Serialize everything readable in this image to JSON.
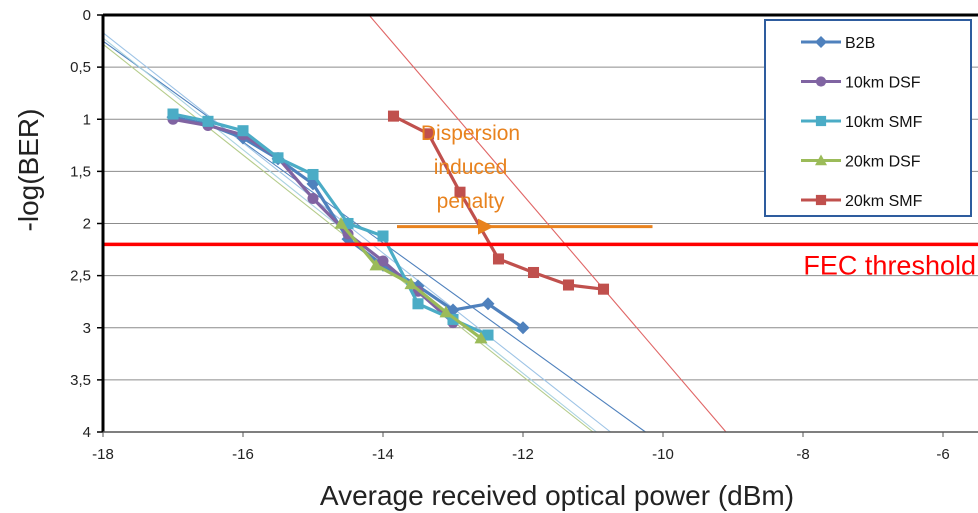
{
  "chart_data": {
    "type": "scatter",
    "xlabel": "Average received optical power (dBm)",
    "ylabel": "-log(BER)",
    "xlim": [
      -18,
      -5.5
    ],
    "ylim": [
      0,
      4
    ],
    "y_inverted": true,
    "x_ticks": [
      "-18",
      "-16",
      "-14",
      "-12",
      "-10",
      "-8",
      "-6"
    ],
    "x_tick_values": [
      -18,
      -16,
      -14,
      -12,
      -10,
      -8,
      -6
    ],
    "y_ticks": [
      "0",
      "0,5",
      "1",
      "1,5",
      "2",
      "2,5",
      "3",
      "3,5",
      "4"
    ],
    "y_tick_values": [
      0,
      0.5,
      1,
      1.5,
      2,
      2.5,
      3,
      3.5,
      4
    ],
    "grid": "horizontal",
    "legend_position": "top-right",
    "series": [
      {
        "name": "B2B",
        "color": "#4F81BD",
        "marker": "diamond",
        "x": [
          -17,
          -16.5,
          -16,
          -15.5,
          -15,
          -14.5,
          -14,
          -13.5,
          -13,
          -12.5,
          -12
        ],
        "y": [
          0.98,
          1.05,
          1.18,
          1.38,
          1.62,
          2.15,
          2.4,
          2.6,
          2.83,
          2.77,
          3.0
        ]
      },
      {
        "name": "10km DSF",
        "color": "#8064A2",
        "marker": "circle",
        "x": [
          -17,
          -16.5,
          -16,
          -15.5,
          -15,
          -14.5,
          -14,
          -13.5,
          -13
        ],
        "y": [
          1.0,
          1.06,
          1.15,
          1.37,
          1.76,
          2.1,
          2.36,
          2.65,
          2.95
        ]
      },
      {
        "name": "10km SMF",
        "color": "#4BACC6",
        "marker": "square",
        "x": [
          -17,
          -16.5,
          -16,
          -15.5,
          -15,
          -14.5,
          -14,
          -13.5,
          -13,
          -12.5
        ],
        "y": [
          0.95,
          1.02,
          1.11,
          1.37,
          1.53,
          2.0,
          2.12,
          2.77,
          2.92,
          3.07
        ]
      },
      {
        "name": "20km DSF",
        "color": "#9BBB59",
        "marker": "triangle",
        "x": [
          -14.6,
          -14.1,
          -13.6,
          -13.1,
          -12.6
        ],
        "y": [
          2.0,
          2.4,
          2.58,
          2.85,
          3.1
        ]
      },
      {
        "name": "20km SMF",
        "color": "#C0504D",
        "marker": "square",
        "x": [
          -13.85,
          -13.35,
          -12.9,
          -12.35,
          -11.85,
          -11.35,
          -10.85
        ],
        "y": [
          0.97,
          1.14,
          1.7,
          2.34,
          2.47,
          2.59,
          2.63
        ]
      }
    ],
    "trendlines": [
      {
        "color": "#4F81BD",
        "x": [
          -18,
          -10.25
        ],
        "y": [
          0.25,
          4.0
        ]
      },
      {
        "color": "#9DC3E6",
        "x": [
          -18,
          -10.75
        ],
        "y": [
          0.17,
          4.0
        ]
      },
      {
        "color": "#A9D2E0",
        "x": [
          -18,
          -10.95
        ],
        "y": [
          0.22,
          4.0
        ]
      },
      {
        "color": "#B5CC8B",
        "x": [
          -18,
          -11.0
        ],
        "y": [
          0.28,
          4.0
        ]
      },
      {
        "color": "#E06666",
        "x": [
          -14.2,
          -9.1
        ],
        "y": [
          0.0,
          4.0
        ]
      }
    ],
    "threshold": {
      "y": 2.2,
      "color": "#FF0000",
      "label": "FEC threshold"
    },
    "annotation": {
      "lines": [
        "Dispersion",
        "induced",
        "penalty"
      ],
      "color": "#E8821E",
      "arrow_x": [
        -13.8,
        -10.15
      ],
      "arrow_y": 2.03,
      "arrowhead_x": -12.5
    }
  }
}
